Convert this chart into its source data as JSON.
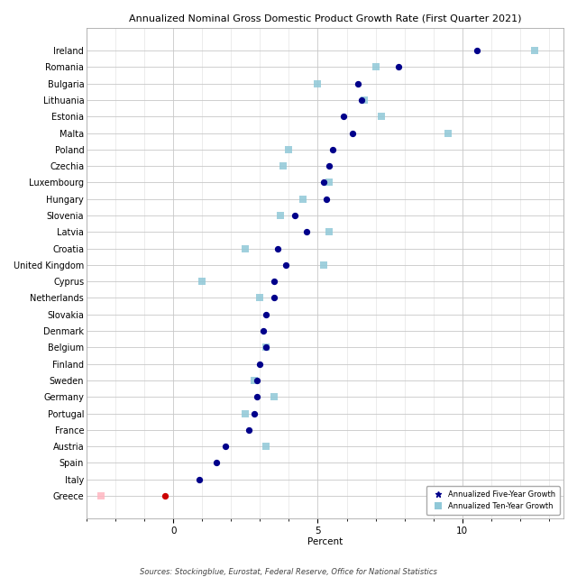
{
  "title": "Annualized Nominal Gross Domestic Product Growth Rate (First Quarter 2021)",
  "xlabel": "Percent",
  "source": "Sources: Stockingblue, Eurostat, Federal Reserve, Office for National Statistics",
  "countries": [
    "Ireland",
    "Romania",
    "Bulgaria",
    "Lithuania",
    "Estonia",
    "Malta",
    "Poland",
    "Czechia",
    "Luxembourg",
    "Hungary",
    "Slovenia",
    "Latvia",
    "Croatia",
    "United Kingdom",
    "Cyprus",
    "Netherlands",
    "Slovakia",
    "Denmark",
    "Belgium",
    "Finland",
    "Sweden",
    "Germany",
    "Portugal",
    "France",
    "Austria",
    "Spain",
    "Italy",
    "Greece"
  ],
  "five_year": [
    10.5,
    7.8,
    6.4,
    6.5,
    5.9,
    6.2,
    5.5,
    5.4,
    5.2,
    5.3,
    4.2,
    4.6,
    3.6,
    3.9,
    3.5,
    3.5,
    3.2,
    3.1,
    3.2,
    3.0,
    2.9,
    2.9,
    2.8,
    2.6,
    1.8,
    1.5,
    0.9,
    -0.3
  ],
  "ten_year": [
    12.5,
    7.0,
    5.0,
    6.6,
    7.2,
    9.5,
    4.0,
    3.8,
    5.4,
    4.5,
    3.7,
    5.4,
    2.5,
    5.2,
    1.0,
    3.0,
    null,
    null,
    3.2,
    null,
    2.8,
    3.5,
    2.5,
    null,
    3.2,
    null,
    null,
    -2.5
  ],
  "dot_color": "#00008B",
  "dot_color_neg": "#CC0000",
  "square_color": "#90C8D8",
  "square_color_neg": "#FFB6C1",
  "xlim": [
    -3.0,
    13.5
  ],
  "xticks": [
    0,
    5,
    10
  ],
  "legend_dot_label": "Annualized Five-Year Growth",
  "legend_sq_label": "Annualized Ten-Year Growth",
  "fig_width": 6.4,
  "fig_height": 6.4,
  "dpi": 100
}
